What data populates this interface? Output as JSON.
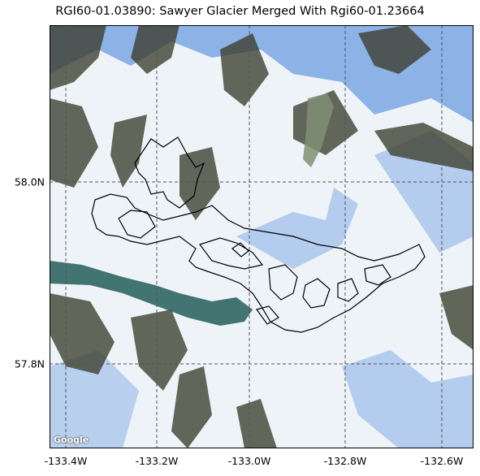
{
  "title": "RGI60-01.03890: Sawyer Glacier Merged With Rgi60-01.23664",
  "axes": {
    "x_ticks": [
      "-133.4W",
      "-133.2W",
      "-133.0W",
      "-132.8W",
      "-132.6W"
    ],
    "y_ticks": [
      "58.0N",
      "57.8N"
    ]
  },
  "attribution": "Google",
  "colors": {
    "outline": "#000000",
    "grid": "#555555",
    "snow": "#f7f9fb",
    "ice_blue": "#5c8fd6",
    "rock": "#3d3d2a",
    "water": "#2d5f5c"
  }
}
